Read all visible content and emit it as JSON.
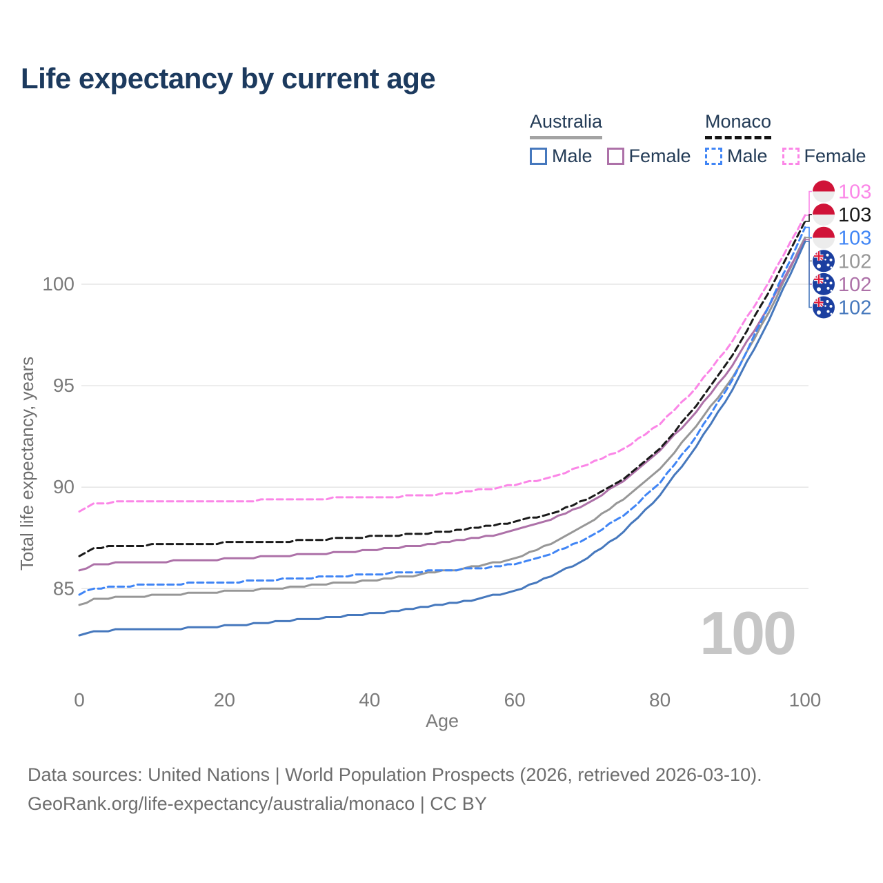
{
  "title": "Life expectancy by current age",
  "legend": {
    "groups": [
      {
        "label": "Australia",
        "underline_style": "solid",
        "underline_color": "#a3a3a3",
        "items": [
          {
            "label": "Male",
            "color": "#4678bd",
            "style": "solid"
          },
          {
            "label": "Female",
            "color": "#ad71a8",
            "style": "solid"
          }
        ]
      },
      {
        "label": "Monaco",
        "underline_style": "dashed",
        "underline_color": "#141414",
        "items": [
          {
            "label": "Male",
            "color": "#4085f5",
            "style": "dashed"
          },
          {
            "label": "Female",
            "color": "#fb86e7",
            "style": "dashed"
          }
        ]
      }
    ]
  },
  "watermark": "100",
  "footer": {
    "line1": "Data sources: United Nations | World Population Prospects (2026, retrieved 2026-03-10).",
    "line2": "GeoRank.org/life-expectancy/australia/monaco | CC BY"
  },
  "chart_data": {
    "type": "line",
    "title": "Life expectancy by current age",
    "xlabel": "Age",
    "ylabel": "Total life expectancy, years",
    "xlim": [
      0,
      100
    ],
    "ylim": [
      82.5,
      104
    ],
    "xticks": [
      0,
      20,
      40,
      60,
      80,
      100
    ],
    "yticks": [
      85,
      90,
      95,
      100
    ],
    "grid": "horizontal",
    "legend_position": "top-right",
    "ages": [
      0,
      2,
      5,
      10,
      15,
      20,
      25,
      30,
      35,
      40,
      45,
      50,
      55,
      60,
      65,
      70,
      75,
      80,
      85,
      90,
      95,
      100
    ],
    "series": [
      {
        "name": "Australia Total",
        "country": "Australia",
        "sex": "Total",
        "flag": "australia",
        "color": "#979797",
        "dash": "solid",
        "end_label": "102",
        "values": [
          84.2,
          84.45,
          84.55,
          84.65,
          84.75,
          84.85,
          84.95,
          85.1,
          85.25,
          85.4,
          85.6,
          85.85,
          86.1,
          86.5,
          87.2,
          88.2,
          89.4,
          90.9,
          93.0,
          95.4,
          98.6,
          102.3
        ]
      },
      {
        "name": "Australia Female",
        "country": "Australia",
        "sex": "Female",
        "flag": "australia",
        "color": "#ad71a8",
        "dash": "solid",
        "end_label": "102",
        "values": [
          85.9,
          86.15,
          86.25,
          86.3,
          86.4,
          86.45,
          86.55,
          86.65,
          86.75,
          86.9,
          87.05,
          87.25,
          87.5,
          87.85,
          88.4,
          89.2,
          90.3,
          91.8,
          93.7,
          96.0,
          98.9,
          102.2
        ]
      },
      {
        "name": "Australia Male",
        "country": "Australia",
        "sex": "Male",
        "flag": "australia",
        "color": "#4678bd",
        "dash": "solid",
        "end_label": "102",
        "values": [
          82.7,
          82.9,
          82.95,
          83.0,
          83.05,
          83.15,
          83.3,
          83.45,
          83.6,
          83.75,
          83.95,
          84.2,
          84.5,
          84.9,
          85.6,
          86.5,
          87.8,
          89.6,
          92.0,
          94.8,
          98.2,
          102.1
        ]
      },
      {
        "name": "Monaco Male",
        "country": "Monaco",
        "sex": "Male",
        "flag": "monaco",
        "color": "#4085f5",
        "dash": "dashed",
        "end_label": "103",
        "values": [
          84.7,
          85.0,
          85.1,
          85.2,
          85.25,
          85.3,
          85.4,
          85.5,
          85.6,
          85.7,
          85.8,
          85.9,
          86.0,
          86.2,
          86.7,
          87.5,
          88.6,
          90.2,
          92.5,
          95.3,
          98.9,
          102.8
        ]
      },
      {
        "name": "Monaco Total",
        "country": "Monaco",
        "sex": "Total",
        "flag": "monaco",
        "color": "#1a1a1a",
        "dash": "dashed",
        "end_label": "103",
        "values": [
          86.6,
          87.0,
          87.1,
          87.15,
          87.2,
          87.25,
          87.3,
          87.35,
          87.45,
          87.55,
          87.65,
          87.8,
          88.0,
          88.3,
          88.7,
          89.4,
          90.4,
          91.9,
          94.0,
          96.5,
          99.6,
          103.1
        ]
      },
      {
        "name": "Monaco Female",
        "country": "Monaco",
        "sex": "Female",
        "flag": "monaco",
        "color": "#fb86e7",
        "dash": "dashed",
        "end_label": "103",
        "values": [
          88.8,
          89.2,
          89.25,
          89.25,
          89.3,
          89.3,
          89.35,
          89.4,
          89.45,
          89.5,
          89.55,
          89.65,
          89.85,
          90.1,
          90.5,
          91.1,
          91.9,
          93.1,
          94.9,
          97.2,
          100.1,
          103.4
        ]
      }
    ],
    "end_labels": [
      {
        "series": "Monaco Female",
        "text": "103"
      },
      {
        "series": "Monaco Total",
        "text": "103"
      },
      {
        "series": "Monaco Male",
        "text": "103"
      },
      {
        "series": "Australia Total",
        "text": "102"
      },
      {
        "series": "Australia Female",
        "text": "102"
      },
      {
        "series": "Australia Male",
        "text": "102"
      }
    ]
  }
}
